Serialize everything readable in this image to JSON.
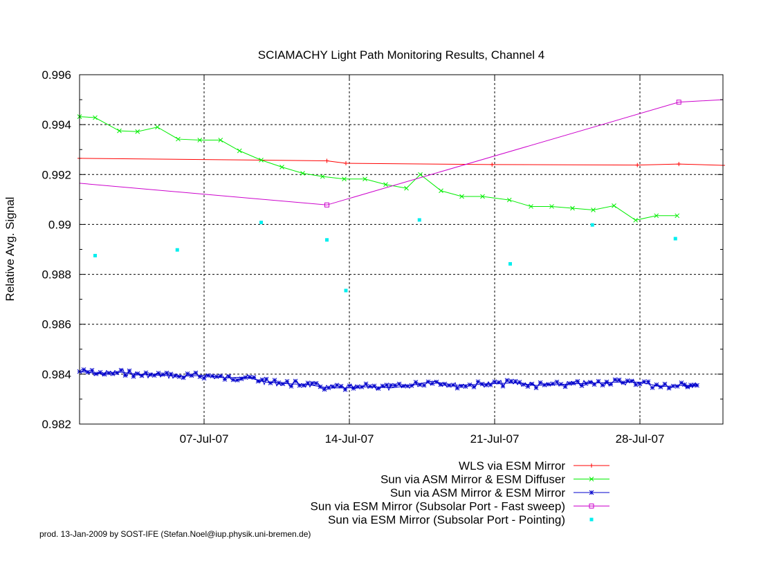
{
  "chart_data": {
    "type": "line",
    "title": "SCIAMACHY Light Path Monitoring Results, Channel 4",
    "ylabel": "Relative Avg. Signal",
    "xlabel": "",
    "xlim": [
      "2007-07-01T00:00",
      "2007-08-01T00:00"
    ],
    "ylim": [
      0.982,
      0.996
    ],
    "x_ticks": [
      {
        "date": "2007-07-07",
        "label": "07-Jul-07"
      },
      {
        "date": "2007-07-14",
        "label": "14-Jul-07"
      },
      {
        "date": "2007-07-21",
        "label": "21-Jul-07"
      },
      {
        "date": "2007-07-28",
        "label": "28-Jul-07"
      }
    ],
    "y_ticks": [
      {
        "value": 0.982,
        "label": "0.982"
      },
      {
        "value": 0.984,
        "label": "0.984"
      },
      {
        "value": 0.986,
        "label": "0.986"
      },
      {
        "value": 0.988,
        "label": "0.988"
      },
      {
        "value": 0.99,
        "label": "0.99"
      },
      {
        "value": 0.992,
        "label": "0.992"
      },
      {
        "value": 0.994,
        "label": "0.994"
      },
      {
        "value": 0.996,
        "label": "0.996"
      }
    ],
    "grid": true,
    "legend_position": "below plot, right-aligned",
    "series": [
      {
        "name": "WLS via ESM Mirror",
        "color": "#ff0000",
        "marker": "plus",
        "points": [
          [
            "2007-07-01T00:00",
            0.99265
          ],
          [
            "2007-07-12T22:00",
            0.99255
          ],
          [
            "2007-07-13T20:00",
            0.99245
          ],
          [
            "2007-07-20T21:00",
            0.9924
          ],
          [
            "2007-07-27T21:00",
            0.99238
          ],
          [
            "2007-07-29T21:00",
            0.99242
          ],
          [
            "2007-08-01T00:00",
            0.99237
          ]
        ]
      },
      {
        "name": "Sun via ASM Mirror & ESM Diffuser",
        "color": "#00ee00",
        "marker": "cross",
        "points": [
          [
            "2007-07-01T00:00",
            0.99432
          ],
          [
            "2007-07-01T18:00",
            0.99428
          ],
          [
            "2007-07-02T22:00",
            0.99375
          ],
          [
            "2007-07-03T19:00",
            0.99372
          ],
          [
            "2007-07-04T18:00",
            0.9939
          ],
          [
            "2007-07-05T18:00",
            0.99342
          ],
          [
            "2007-07-06T19:00",
            0.99338
          ],
          [
            "2007-07-07T19:00",
            0.99338
          ],
          [
            "2007-07-08T17:00",
            0.99295
          ],
          [
            "2007-07-09T18:00",
            0.99258
          ],
          [
            "2007-07-10T18:00",
            0.9923
          ],
          [
            "2007-07-11T18:00",
            0.99205
          ],
          [
            "2007-07-12T17:00",
            0.99192
          ],
          [
            "2007-07-13T18:00",
            0.99182
          ],
          [
            "2007-07-14T18:00",
            0.99182
          ],
          [
            "2007-07-15T18:00",
            0.9916
          ],
          [
            "2007-07-16T18:00",
            0.99145
          ],
          [
            "2007-07-17T10:00",
            0.992
          ],
          [
            "2007-07-18T10:00",
            0.99135
          ],
          [
            "2007-07-19T10:00",
            0.99112
          ],
          [
            "2007-07-20T10:00",
            0.99112
          ],
          [
            "2007-07-21T17:00",
            0.99098
          ],
          [
            "2007-07-22T18:00",
            0.99072
          ],
          [
            "2007-07-23T18:00",
            0.99072
          ],
          [
            "2007-07-24T18:00",
            0.99065
          ],
          [
            "2007-07-25T18:00",
            0.99058
          ],
          [
            "2007-07-26T18:00",
            0.99075
          ],
          [
            "2007-07-27T19:00",
            0.99017
          ],
          [
            "2007-07-28T19:00",
            0.99035
          ],
          [
            "2007-07-29T19:00",
            0.99035
          ]
        ]
      },
      {
        "name": "Sun via ASM Mirror & ESM Mirror",
        "color": "#0000cc",
        "marker": "star",
        "points": [
          [
            "2007-07-01T00:00",
            0.9841
          ],
          [
            "2007-07-02T00:00",
            0.98402
          ],
          [
            "2007-07-03T00:00",
            0.98408
          ],
          [
            "2007-07-04T00:00",
            0.98398
          ],
          [
            "2007-07-05T00:00",
            0.98395
          ],
          [
            "2007-07-06T00:00",
            0.98392
          ],
          [
            "2007-07-07T00:00",
            0.98395
          ],
          [
            "2007-07-08T00:00",
            0.98385
          ],
          [
            "2007-07-09T00:00",
            0.98388
          ],
          [
            "2007-07-10T00:00",
            0.98368
          ],
          [
            "2007-07-11T00:00",
            0.98362
          ],
          [
            "2007-07-12T00:00",
            0.98358
          ],
          [
            "2007-07-13T00:00",
            0.98345
          ],
          [
            "2007-07-14T00:00",
            0.98345
          ],
          [
            "2007-07-15T00:00",
            0.9835
          ],
          [
            "2007-07-16T00:00",
            0.98345
          ],
          [
            "2007-07-17T00:00",
            0.98355
          ],
          [
            "2007-07-18T00:00",
            0.98372
          ],
          [
            "2007-07-19T00:00",
            0.98355
          ],
          [
            "2007-07-20T00:00",
            0.98358
          ],
          [
            "2007-07-21T00:00",
            0.98362
          ],
          [
            "2007-07-22T00:00",
            0.98365
          ],
          [
            "2007-07-23T00:00",
            0.98355
          ],
          [
            "2007-07-24T00:00",
            0.98358
          ],
          [
            "2007-07-25T00:00",
            0.98362
          ],
          [
            "2007-07-26T00:00",
            0.98365
          ],
          [
            "2007-07-27T00:00",
            0.98368
          ],
          [
            "2007-07-28T00:00",
            0.98368
          ],
          [
            "2007-07-29T00:00",
            0.9835
          ],
          [
            "2007-07-30T00:00",
            0.98355
          ],
          [
            "2007-07-30T18:00",
            0.98355
          ]
        ]
      },
      {
        "name": "Sun via ESM Mirror (Subsolar Port - Fast sweep)",
        "color": "#cc00cc",
        "marker": "square",
        "points": [
          [
            "2007-07-01T00:00",
            0.99165
          ],
          [
            "2007-07-12T22:00",
            0.99078
          ],
          [
            "2007-07-29T21:00",
            0.9949
          ],
          [
            "2007-08-01T00:00",
            0.995
          ]
        ],
        "marked_points": [
          [
            "2007-07-12T22:00",
            0.99078
          ],
          [
            "2007-07-29T21:00",
            0.9949
          ]
        ]
      },
      {
        "name": "Sun via ESM Mirror (Subsolar Port - Pointing)",
        "color": "#00eeee",
        "marker": "dot",
        "points": [
          [
            "2007-07-01T18:00",
            0.98875
          ],
          [
            "2007-07-05T17:00",
            0.98898
          ],
          [
            "2007-07-09T18:00",
            0.99008
          ],
          [
            "2007-07-12T22:00",
            0.98938
          ],
          [
            "2007-07-13T20:00",
            0.98735
          ],
          [
            "2007-07-17T09:00",
            0.99018
          ],
          [
            "2007-07-21T18:00",
            0.98842
          ],
          [
            "2007-07-25T17:00",
            0.98998
          ],
          [
            "2007-07-29T17:00",
            0.98943
          ]
        ]
      }
    ]
  },
  "footer": "prod. 13-Jan-2009 by SOST-IFE (Stefan.Noel@iup.physik.uni-bremen.de)"
}
